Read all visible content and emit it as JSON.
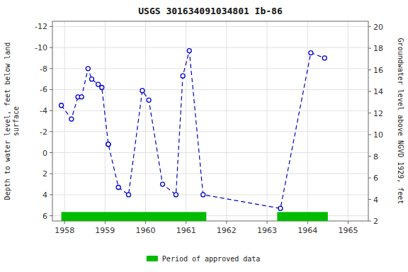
{
  "chart_data": {
    "type": "line",
    "title": "USGS 301634091034801 Ib-86",
    "ylabel": "Depth to water level, feet below land\nsurface",
    "y2label": "Groundwater level above NGVD 1929, feet",
    "x": [
      1957.92,
      1958.17,
      1958.33,
      1958.42,
      1958.58,
      1958.67,
      1958.83,
      1958.92,
      1959.08,
      1959.08,
      1959.33,
      1959.58,
      1959.92,
      1960.08,
      1960.42,
      1960.75,
      1960.92,
      1961.08,
      1961.42,
      1963.33,
      1964.08,
      1964.42
    ],
    "series": [
      {
        "values": [
          -4.5,
          -3.2,
          -5.3,
          -5.3,
          -8.0,
          -7.0,
          -6.5,
          -6.2,
          -0.8,
          -0.8,
          3.3,
          4.0,
          -5.9,
          -5.0,
          3.0,
          4.0,
          -7.3,
          -9.7,
          4.0,
          5.3,
          -9.5,
          -9.0
        ],
        "color": "#0000cc",
        "marker": "circle",
        "line_style": "dashed"
      },
      {
        "name": "Period of approved data",
        "type": "span",
        "color": "#00bb00",
        "x_start": [
          1957.92,
          1963.25
        ],
        "x_end": [
          1961.5,
          1964.5
        ]
      }
    ],
    "xlim": [
      1957.7,
      1965.5
    ],
    "xticks": [
      1958,
      1959,
      1960,
      1961,
      1962,
      1963,
      1964,
      1965
    ],
    "ylim": [
      6.5,
      -12.5
    ],
    "yticks": [
      -12,
      -10,
      -8,
      -6,
      -4,
      -2,
      0,
      2,
      4,
      6
    ],
    "y2lim": [
      2,
      20.5
    ],
    "y2ticks": [
      2,
      4,
      6,
      8,
      10,
      12,
      14,
      16,
      18,
      20
    ],
    "grid": true,
    "legend": "bottom"
  }
}
